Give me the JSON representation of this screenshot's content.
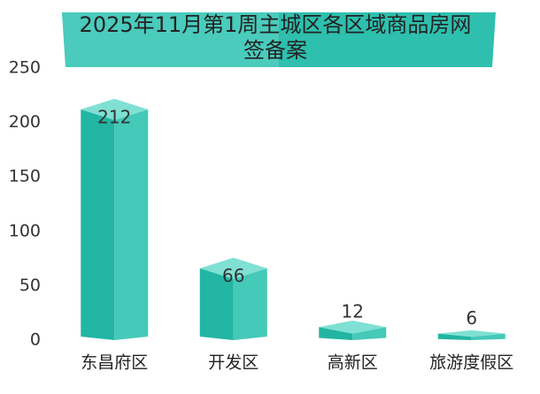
{
  "chart_data": {
    "type": "bar",
    "title": "2025年11月第1周主城区各区域商品房网签备案",
    "categories": [
      "东昌府区",
      "开发区",
      "高新区",
      "旅游度假区"
    ],
    "values": [
      212,
      66,
      12,
      6
    ],
    "color": "#22b5a3",
    "ylim": [
      0,
      250
    ],
    "yticks": [
      0,
      50,
      100,
      150,
      200,
      250
    ],
    "grid": false
  }
}
